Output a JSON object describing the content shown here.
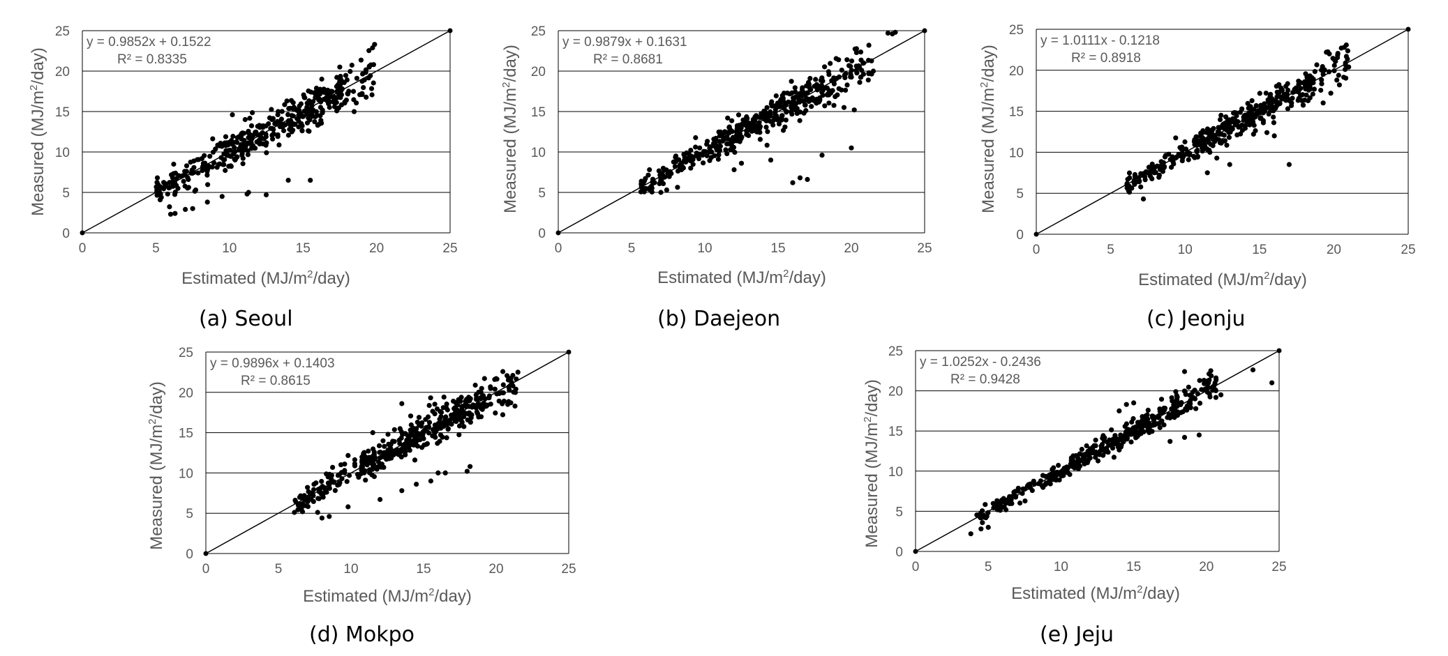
{
  "chart_data": [
    {
      "type": "scatter",
      "panel_caption": "(a) Seoul",
      "xlabel": "Estimated (MJ/m²/day)",
      "ylabel": "Measured (MJ/m²/day)",
      "xlim": [
        0,
        25
      ],
      "ylim": [
        0,
        25
      ],
      "xticks": [
        "0",
        "5",
        "10",
        "15",
        "20",
        "25"
      ],
      "yticks": [
        "0",
        "5",
        "10",
        "15",
        "20",
        "25"
      ],
      "grid": "horizontal",
      "annotations": [
        "y = 0.9852x + 0.1522",
        "R² = 0.8335"
      ],
      "fit": {
        "slope": 0.9852,
        "intercept": 0.1522,
        "r2": 0.8335
      },
      "x_range": [
        5,
        20
      ],
      "points": [
        [
          6.0,
          2.3
        ],
        [
          6.3,
          2.4
        ],
        [
          7.0,
          2.9
        ],
        [
          7.5,
          3.0
        ],
        [
          8.5,
          3.8
        ],
        [
          9.5,
          4.5
        ],
        [
          11.2,
          4.8
        ],
        [
          11.3,
          5.0
        ],
        [
          12.5,
          4.7
        ],
        [
          14.0,
          6.5
        ],
        [
          15.5,
          6.5
        ],
        [
          10.2,
          14.6
        ],
        [
          16.0,
          13.3
        ],
        [
          19.8,
          20.8
        ],
        [
          19.5,
          20.5
        ],
        [
          17.5,
          20.5
        ],
        [
          5.1,
          6.8
        ],
        [
          5.3,
          5.7
        ],
        [
          5.8,
          4.8
        ],
        [
          6.5,
          5.5
        ]
      ]
    },
    {
      "type": "scatter",
      "panel_caption": "(b) Daejeon",
      "xlabel": "Estimated (MJ/m²/day)",
      "ylabel": "Measured (MJ/m²/day)",
      "xlim": [
        0,
        25
      ],
      "ylim": [
        0,
        25
      ],
      "xticks": [
        "0",
        "5",
        "10",
        "15",
        "20",
        "25"
      ],
      "yticks": [
        "0",
        "5",
        "10",
        "15",
        "20",
        "25"
      ],
      "grid": "horizontal",
      "annotations": [
        "y = 0.9879x + 0.1631",
        "R² = 0.8681"
      ],
      "fit": {
        "slope": 0.9879,
        "intercept": 0.1631,
        "r2": 0.8681
      },
      "x_range": [
        5.5,
        21.5
      ],
      "points": [
        [
          16.0,
          6.2
        ],
        [
          16.5,
          6.8
        ],
        [
          17.0,
          6.6
        ],
        [
          18.0,
          9.6
        ],
        [
          20.0,
          10.5
        ],
        [
          14.5,
          9.0
        ],
        [
          12.0,
          7.8
        ],
        [
          12.5,
          8.6
        ],
        [
          19.5,
          15.5
        ],
        [
          20.2,
          15.2
        ],
        [
          22.5,
          24.7
        ],
        [
          22.8,
          24.6
        ],
        [
          23.0,
          24.8
        ],
        [
          21.5,
          20.0
        ],
        [
          21.2,
          19.8
        ],
        [
          5.8,
          6.1
        ],
        [
          7.0,
          5.0
        ],
        [
          7.4,
          5.3
        ]
      ]
    },
    {
      "type": "scatter",
      "panel_caption": "(c) Jeonju",
      "xlabel": "Estimated (MJ/m²/day)",
      "ylabel": "Measured (MJ/m²/day)",
      "xlim": [
        0,
        25
      ],
      "ylim": [
        0,
        25
      ],
      "xticks": [
        "0",
        "5",
        "10",
        "15",
        "20",
        "25"
      ],
      "yticks": [
        "0",
        "5",
        "10",
        "15",
        "20",
        "25"
      ],
      "grid": "horizontal",
      "annotations": [
        "y = 1.0111x - 0.1218",
        "R² = 0.8918"
      ],
      "fit": {
        "slope": 1.0111,
        "intercept": -0.1218,
        "r2": 0.8918
      },
      "x_range": [
        6,
        21
      ],
      "points": [
        [
          17.0,
          8.5
        ],
        [
          13.0,
          8.5
        ],
        [
          11.5,
          7.5
        ],
        [
          7.2,
          4.3
        ],
        [
          20.5,
          22.7
        ],
        [
          20.7,
          22.8
        ],
        [
          21.0,
          20.4
        ],
        [
          19.5,
          22.2
        ],
        [
          19.7,
          22.0
        ],
        [
          19.8,
          17.2
        ],
        [
          6.2,
          5.3
        ],
        [
          16.0,
          12.0
        ],
        [
          15.5,
          12.4
        ]
      ]
    },
    {
      "type": "scatter",
      "panel_caption": "(d) Mokpo",
      "xlabel": "Estimated (MJ/m²/day)",
      "ylabel": "Measured (MJ/m²/day)",
      "xlim": [
        0,
        25
      ],
      "ylim": [
        0,
        25
      ],
      "xticks": [
        "0",
        "5",
        "10",
        "15",
        "20",
        "25"
      ],
      "yticks": [
        "0",
        "5",
        "10",
        "15",
        "20",
        "25"
      ],
      "grid": "horizontal",
      "annotations": [
        "y = 0.9896x + 0.1403",
        "R² = 0.8615"
      ],
      "fit": {
        "slope": 0.9896,
        "intercept": 0.1403,
        "r2": 0.8615
      },
      "x_range": [
        6,
        21.5
      ],
      "points": [
        [
          8.0,
          4.4
        ],
        [
          8.5,
          4.6
        ],
        [
          7.7,
          5.1
        ],
        [
          9.8,
          5.8
        ],
        [
          12.0,
          6.7
        ],
        [
          13.5,
          7.8
        ],
        [
          14.5,
          8.6
        ],
        [
          15.5,
          9.0
        ],
        [
          16.0,
          10.0
        ],
        [
          18.0,
          10.2
        ],
        [
          18.2,
          10.8
        ],
        [
          16.5,
          10.0
        ],
        [
          21.3,
          18.3
        ],
        [
          20.8,
          18.5
        ],
        [
          20.0,
          21.7
        ],
        [
          21.5,
          22.5
        ],
        [
          13.5,
          18.6
        ],
        [
          11.5,
          15.0
        ],
        [
          6.1,
          5.1
        ],
        [
          6.2,
          6.4
        ]
      ]
    },
    {
      "type": "scatter",
      "panel_caption": "(e) Jeju",
      "xlabel": "Estimated (MJ/m²/day)",
      "ylabel": "Measured (MJ/m²/day)",
      "xlim": [
        0,
        25
      ],
      "ylim": [
        0,
        25
      ],
      "xticks": [
        "0",
        "5",
        "10",
        "15",
        "20",
        "25"
      ],
      "yticks": [
        "0",
        "5",
        "10",
        "15",
        "20",
        "25"
      ],
      "grid": "horizontal",
      "annotations": [
        "y = 1.0252x - 0.2436",
        "R² = 0.9428"
      ],
      "fit": {
        "slope": 1.0252,
        "intercept": -0.2436,
        "r2": 0.9428
      },
      "x_range": [
        4,
        21
      ],
      "points": [
        [
          3.8,
          2.2
        ],
        [
          4.5,
          2.8
        ],
        [
          5.0,
          3.0
        ],
        [
          23.2,
          22.6
        ],
        [
          24.5,
          21.0
        ],
        [
          21.0,
          19.5
        ],
        [
          18.5,
          14.2
        ],
        [
          19.5,
          14.5
        ],
        [
          17.5,
          13.7
        ],
        [
          14.5,
          18.3
        ],
        [
          15.0,
          18.5
        ],
        [
          14.0,
          17.5
        ],
        [
          18.5,
          22.4
        ],
        [
          20.3,
          22.5
        ]
      ]
    }
  ]
}
